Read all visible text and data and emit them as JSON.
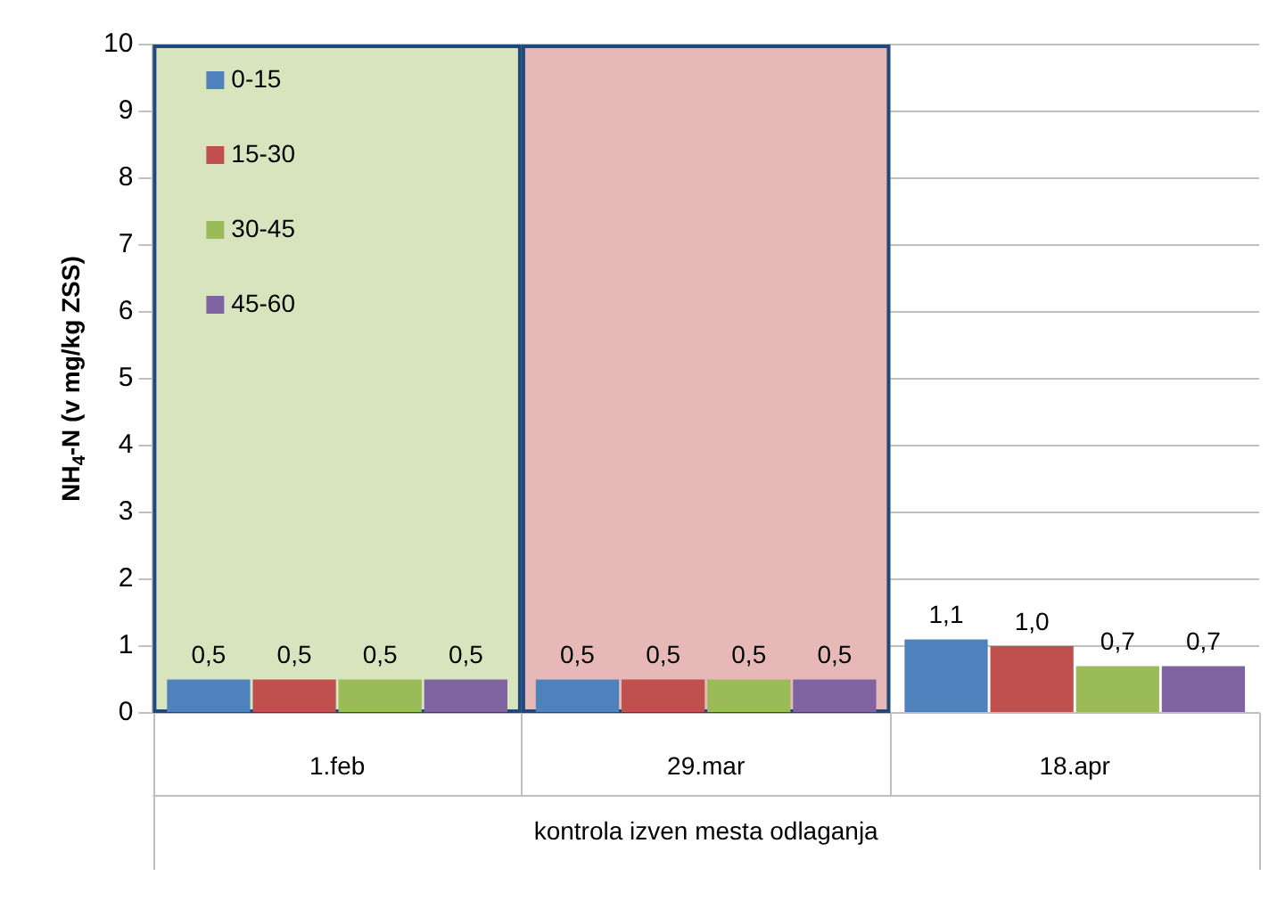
{
  "chart_data": {
    "type": "bar",
    "ylabel": "NH$_{4}$-N (v mg/kg ZSS)",
    "categories": [
      "1.feb",
      "29.mar",
      "18.apr"
    ],
    "series": [
      {
        "name": "0-15",
        "color": "#4f81bd",
        "values": [
          0.5,
          0.5,
          1.1
        ],
        "value_labels": [
          "0,5",
          "0,5",
          "1,1"
        ]
      },
      {
        "name": "15-30",
        "color": "#c0504d",
        "values": [
          0.5,
          0.5,
          1.0
        ],
        "value_labels": [
          "0,5",
          "0,5",
          "1,0"
        ]
      },
      {
        "name": "30-45",
        "color": "#9bbb59",
        "values": [
          0.5,
          0.5,
          0.7
        ],
        "value_labels": [
          "0,5",
          "0,5",
          "0,7"
        ]
      },
      {
        "name": "45-60",
        "color": "#8064a2",
        "values": [
          0.5,
          0.5,
          0.7
        ],
        "value_labels": [
          "0,5",
          "0,5",
          "0,7"
        ]
      }
    ],
    "bands": [
      {
        "axis": "x",
        "from": "1.feb",
        "to": "1.feb",
        "color": "#d7e4bd"
      },
      {
        "axis": "x",
        "from": "29.mar",
        "to": "29.mar",
        "color": "#e6b9b8"
      }
    ],
    "annotations": [
      "kontrola izven mesta odlaganja"
    ],
    "ylim": [
      0,
      10
    ],
    "yticks": [
      0,
      1,
      2,
      3,
      4,
      5,
      6,
      7,
      8,
      9,
      10
    ],
    "grid": "y",
    "legend": "top left"
  }
}
